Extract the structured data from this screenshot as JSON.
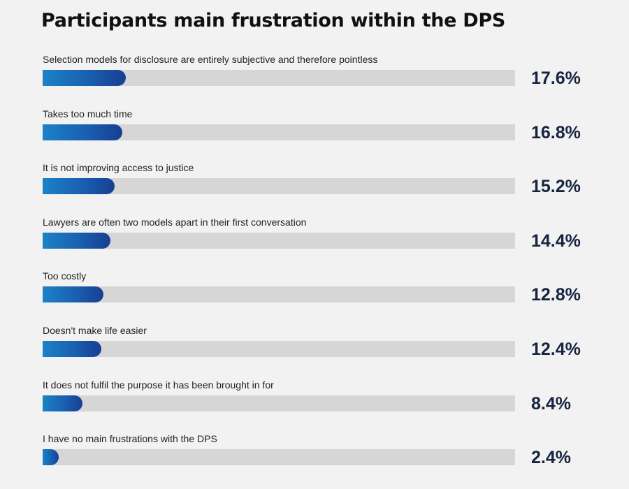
{
  "chart_data": {
    "type": "bar",
    "title": "Participants main frustration within the DPS",
    "orientation": "horizontal",
    "xlim": [
      0,
      100
    ],
    "colors": {
      "bar_start": "#1c82c6",
      "bar_end": "#173f91",
      "track": "#d6d6d6",
      "value_text": "#172440"
    },
    "categories": [
      "Selection models for disclosure are entirely subjective and therefore pointless",
      "Takes too much time",
      "It is not improving access to justice",
      "Lawyers are often two models apart in their first conversation",
      "Too costly",
      "Doesn't make life easier",
      "It does not fulfil the purpose it has been brought in for",
      "I have no main frustrations with the DPS"
    ],
    "values": [
      17.6,
      16.8,
      15.2,
      14.4,
      12.8,
      12.4,
      8.4,
      2.4
    ],
    "value_labels": [
      "17.6%",
      "16.8%",
      "15.2%",
      "14.4%",
      "12.8%",
      "12.4%",
      "8.4%",
      "2.4%"
    ]
  }
}
